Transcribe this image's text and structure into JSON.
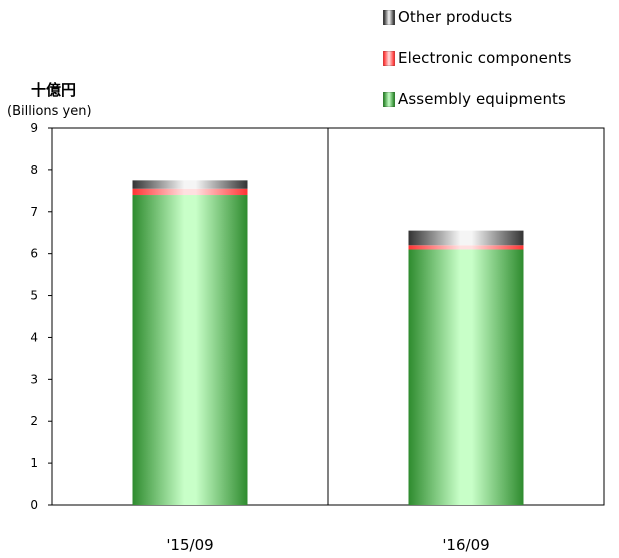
{
  "chart_data": {
    "type": "bar",
    "stacked": true,
    "title": "",
    "ylabel": "十億円",
    "ylabel_sub": "(Billions yen)",
    "xlabel": "",
    "ylim": [
      0,
      9
    ],
    "yticks": [
      0,
      1,
      2,
      3,
      4,
      5,
      6,
      7,
      8,
      9
    ],
    "categories": [
      "'15/09",
      "'16/09"
    ],
    "legend_position": "top-right",
    "grid": false,
    "series": [
      {
        "name": "Assembly equipments",
        "values": [
          7.4,
          6.1
        ],
        "color": "#2e8b2e",
        "highlight": "#c8ffc8"
      },
      {
        "name": "Electronic components",
        "values": [
          0.15,
          0.1
        ],
        "color": "#ff3333",
        "highlight": "#ffe0e0"
      },
      {
        "name": "Other products",
        "values": [
          0.2,
          0.35
        ],
        "color": "#333333",
        "highlight": "#f5f5f5"
      }
    ],
    "legend_order": [
      "Other products",
      "Electronic components",
      "Assembly equipments"
    ]
  }
}
